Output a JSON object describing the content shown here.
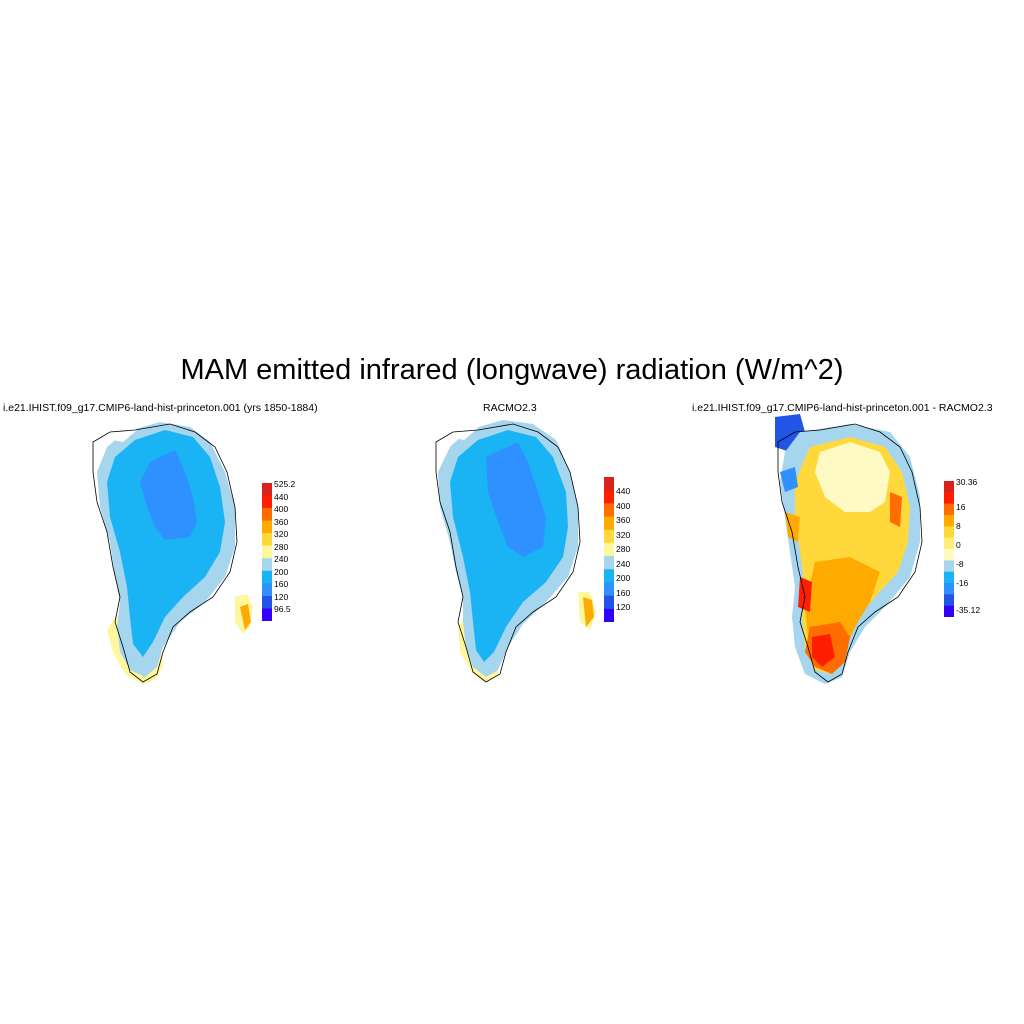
{
  "title": "MAM emitted infrared (longwave) radiation (W/m^2)",
  "panels": [
    {
      "title": "i.e21.IHIST.f09_g17.CMIP6-land-hist-princeton.001 (yrs 1850-1884)",
      "colorbar": {
        "colors": [
          "#3300ff",
          "#2255e6",
          "#2f90ff",
          "#1ab4f5",
          "#a6d5ee",
          "#fff79e",
          "#ffd93b",
          "#ffaa00",
          "#ff6d00",
          "#ff1f00",
          "#d9221e"
        ],
        "labels": [
          "525.2",
          "440",
          "400",
          "360",
          "320",
          "280",
          "240",
          "200",
          "160",
          "120",
          "96.5"
        ]
      }
    },
    {
      "title": "RACMO2.3",
      "colorbar": {
        "colors": [
          "#3300ff",
          "#2255e6",
          "#2f90ff",
          "#1ab4f5",
          "#a6d5ee",
          "#fff79e",
          "#ffd93b",
          "#ffaa00",
          "#ff6d00",
          "#ff1f00",
          "#d9221e"
        ],
        "labels": [
          "440",
          "400",
          "360",
          "320",
          "280",
          "240",
          "200",
          "160",
          "120"
        ]
      }
    },
    {
      "title": "i.e21.IHIST.f09_g17.CMIP6-land-hist-princeton.001 - RACMO2.3",
      "colorbar": {
        "colors": [
          "#3300ff",
          "#2255e6",
          "#2f90ff",
          "#1ab4f5",
          "#a6d5ee",
          "#fff9c4",
          "#ffee7a",
          "#ffd93b",
          "#ffaa00",
          "#ff6d00",
          "#ff1f00",
          "#d9221e"
        ],
        "labels": [
          "30.36",
          "16",
          "8",
          "0",
          "-8",
          "-16",
          "-35.12"
        ]
      }
    }
  ]
}
